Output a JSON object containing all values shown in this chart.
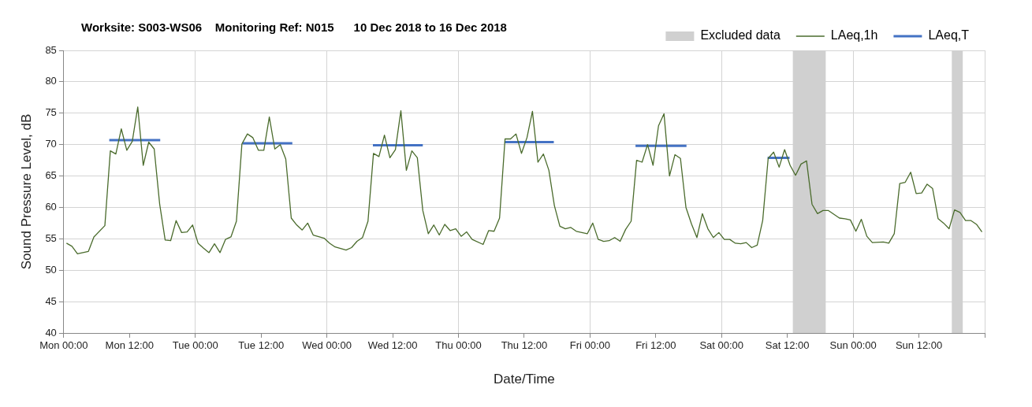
{
  "chart_data": {
    "type": "line",
    "title": "Worksite: S003-WS06    Monitoring Ref: N015      10 Dec 2018 to 16 Dec 2018",
    "xlabel": "Date/Time",
    "ylabel": "Sound Pressure Level, dB",
    "xlim": [
      "2018-12-10T00:00",
      "2018-12-17T00:00"
    ],
    "ylim": [
      40,
      85
    ],
    "yticks": [
      40,
      45,
      50,
      55,
      60,
      65,
      70,
      75,
      80,
      85
    ],
    "xticks": [
      {
        "value": "2018-12-10T00:00",
        "label": "Mon 00:00"
      },
      {
        "value": "2018-12-10T12:00",
        "label": "Mon 12:00"
      },
      {
        "value": "2018-12-11T00:00",
        "label": "Tue 00:00"
      },
      {
        "value": "2018-12-11T12:00",
        "label": "Tue 12:00"
      },
      {
        "value": "2018-12-12T00:00",
        "label": "Wed 00:00"
      },
      {
        "value": "2018-12-12T12:00",
        "label": "Wed 12:00"
      },
      {
        "value": "2018-12-13T00:00",
        "label": "Thu 00:00"
      },
      {
        "value": "2018-12-13T12:00",
        "label": "Thu 12:00"
      },
      {
        "value": "2018-12-14T00:00",
        "label": "Fri 00:00"
      },
      {
        "value": "2018-12-14T12:00",
        "label": "Fri 12:00"
      },
      {
        "value": "2018-12-15T00:00",
        "label": "Sat 00:00"
      },
      {
        "value": "2018-12-15T12:00",
        "label": "Sat 12:00"
      },
      {
        "value": "2018-12-16T00:00",
        "label": "Sun 00:00"
      },
      {
        "value": "2018-12-16T12:00",
        "label": "Sun 12:00"
      },
      {
        "value": "2018-12-17T00:00",
        "label": null
      }
    ],
    "grid": true,
    "legend": "top right",
    "marker": "none",
    "bands": [
      {
        "axis": "x",
        "from": "2018-12-15T13:00",
        "to": "2018-12-15T19:00",
        "label": "Excluded data",
        "color": "#d0d0d0"
      },
      {
        "axis": "x",
        "from": "2018-12-16T18:00",
        "to": "2018-12-16T20:00",
        "color": "#d0d0d0"
      }
    ],
    "series": [
      {
        "name": "LAeq,1h",
        "color": "#4a6b2c",
        "x": [
          "2018-12-10T00:30",
          "2018-12-10T01:30",
          "2018-12-10T02:30",
          "2018-12-10T04:30",
          "2018-12-10T05:30",
          "2018-12-10T07:30",
          "2018-12-10T08:30",
          "2018-12-10T09:30",
          "2018-12-10T10:30",
          "2018-12-10T11:30",
          "2018-12-10T12:30",
          "2018-12-10T13:30",
          "2018-12-10T14:30",
          "2018-12-10T15:30",
          "2018-12-10T16:30",
          "2018-12-10T17:30",
          "2018-12-10T18:30",
          "2018-12-10T19:30",
          "2018-12-10T20:30",
          "2018-12-10T21:30",
          "2018-12-10T22:30",
          "2018-12-10T23:30",
          "2018-12-11T00:30",
          "2018-12-11T01:30",
          "2018-12-11T02:30",
          "2018-12-11T03:30",
          "2018-12-11T04:30",
          "2018-12-11T05:30",
          "2018-12-11T06:30",
          "2018-12-11T07:30",
          "2018-12-11T08:30",
          "2018-12-11T09:30",
          "2018-12-11T10:30",
          "2018-12-11T11:30",
          "2018-12-11T12:30",
          "2018-12-11T13:30",
          "2018-12-11T14:30",
          "2018-12-11T15:30",
          "2018-12-11T16:30",
          "2018-12-11T17:30",
          "2018-12-11T18:30",
          "2018-12-11T19:30",
          "2018-12-11T20:30",
          "2018-12-11T21:30",
          "2018-12-11T23:30",
          "2018-12-12T00:30",
          "2018-12-12T01:30",
          "2018-12-12T03:30",
          "2018-12-12T04:30",
          "2018-12-12T05:30",
          "2018-12-12T06:30",
          "2018-12-12T07:30",
          "2018-12-12T08:30",
          "2018-12-12T09:30",
          "2018-12-12T10:30",
          "2018-12-12T11:30",
          "2018-12-12T12:30",
          "2018-12-12T13:30",
          "2018-12-12T14:30",
          "2018-12-12T15:30",
          "2018-12-12T16:30",
          "2018-12-12T17:30",
          "2018-12-12T18:30",
          "2018-12-12T19:30",
          "2018-12-12T20:30",
          "2018-12-12T21:30",
          "2018-12-12T22:30",
          "2018-12-12T23:30",
          "2018-12-13T00:30",
          "2018-12-13T01:30",
          "2018-12-13T02:30",
          "2018-12-13T04:30",
          "2018-12-13T05:30",
          "2018-12-13T06:30",
          "2018-12-13T07:30",
          "2018-12-13T08:30",
          "2018-12-13T09:30",
          "2018-12-13T10:30",
          "2018-12-13T11:30",
          "2018-12-13T12:30",
          "2018-12-13T13:30",
          "2018-12-13T14:30",
          "2018-12-13T15:30",
          "2018-12-13T16:30",
          "2018-12-13T17:30",
          "2018-12-13T18:30",
          "2018-12-13T19:30",
          "2018-12-13T20:30",
          "2018-12-13T21:30",
          "2018-12-13T22:30",
          "2018-12-13T23:30",
          "2018-12-14T00:30",
          "2018-12-14T01:30",
          "2018-12-14T02:30",
          "2018-12-14T03:30",
          "2018-12-14T04:30",
          "2018-12-14T05:30",
          "2018-12-14T06:30",
          "2018-12-14T07:30",
          "2018-12-14T08:30",
          "2018-12-14T09:30",
          "2018-12-14T10:30",
          "2018-12-14T11:30",
          "2018-12-14T12:30",
          "2018-12-14T13:30",
          "2018-12-14T14:30",
          "2018-12-14T15:30",
          "2018-12-14T16:30",
          "2018-12-14T17:30",
          "2018-12-14T18:30",
          "2018-12-14T19:30",
          "2018-12-14T20:30",
          "2018-12-14T21:30",
          "2018-12-14T22:30",
          "2018-12-14T23:30",
          "2018-12-15T00:30",
          "2018-12-15T01:30",
          "2018-12-15T02:30",
          "2018-12-15T03:30",
          "2018-12-15T04:30",
          "2018-12-15T05:30",
          "2018-12-15T06:30",
          "2018-12-15T07:30",
          "2018-12-15T08:30",
          "2018-12-15T09:30",
          "2018-12-15T10:30",
          "2018-12-15T11:30",
          "2018-12-15T12:30",
          "2018-12-15T13:30",
          "2018-12-15T14:30",
          "2018-12-15T15:30",
          "2018-12-15T16:30",
          "2018-12-15T17:30",
          "2018-12-15T18:30",
          "2018-12-15T19:30",
          "2018-12-15T20:30",
          "2018-12-15T21:30",
          "2018-12-15T22:30",
          "2018-12-15T23:30",
          "2018-12-16T00:30",
          "2018-12-16T01:30",
          "2018-12-16T02:30",
          "2018-12-16T03:30",
          "2018-12-16T05:30",
          "2018-12-16T06:30",
          "2018-12-16T07:30",
          "2018-12-16T08:30",
          "2018-12-16T09:30",
          "2018-12-16T10:30",
          "2018-12-16T11:30",
          "2018-12-16T12:30",
          "2018-12-16T13:30",
          "2018-12-16T14:30",
          "2018-12-16T15:30",
          "2018-12-16T16:30",
          "2018-12-16T17:30",
          "2018-12-16T18:30",
          "2018-12-16T19:30",
          "2018-12-16T20:30",
          "2018-12-16T21:30",
          "2018-12-16T22:30",
          "2018-12-16T23:30"
        ],
        "values": [
          54.3,
          53.8,
          52.6,
          53.0,
          55.3,
          57.1,
          69.0,
          68.5,
          72.5,
          69.1,
          70.5,
          76.0,
          66.7,
          70.4,
          69.3,
          60.5,
          54.8,
          54.7,
          57.9,
          56.0,
          56.1,
          57.2,
          54.3,
          53.5,
          52.8,
          54.2,
          52.8,
          54.9,
          55.3,
          57.8,
          70.1,
          71.7,
          71.1,
          69.1,
          69.1,
          74.4,
          69.3,
          70.0,
          67.7,
          58.3,
          57.2,
          56.4,
          57.5,
          55.6,
          55.1,
          54.3,
          53.7,
          53.2,
          53.6,
          54.6,
          55.2,
          57.8,
          68.6,
          68.1,
          71.5,
          67.9,
          69.2,
          75.4,
          65.9,
          69.0,
          67.9,
          59.5,
          55.8,
          57.2,
          55.6,
          57.3,
          56.3,
          56.6,
          55.4,
          56.1,
          54.9,
          54.1,
          56.3,
          56.2,
          58.3,
          70.9,
          70.9,
          71.7,
          68.6,
          71.1,
          75.3,
          67.2,
          68.5,
          65.9,
          60.3,
          57.0,
          56.6,
          56.8,
          56.2,
          56.0,
          55.8,
          57.5,
          54.9,
          54.6,
          54.7,
          55.2,
          54.6,
          56.5,
          57.8,
          67.5,
          67.2,
          70.0,
          66.7,
          73.0,
          74.9,
          65.0,
          68.4,
          67.8,
          60.0,
          57.4,
          55.2,
          59.0,
          56.6,
          55.2,
          56.0,
          54.9,
          54.9,
          54.3,
          54.2,
          54.4,
          53.6,
          54.0,
          57.9,
          67.8,
          68.8,
          66.4,
          69.2,
          66.7,
          65.1,
          66.9,
          67.4,
          60.5,
          59.0,
          59.5,
          59.5,
          58.9,
          58.3,
          58.2,
          58.0,
          56.2,
          58.1,
          55.4,
          54.4,
          54.5,
          54.3,
          55.8,
          63.8,
          64.0,
          65.6,
          62.2,
          62.3,
          63.7,
          63.0,
          58.2,
          57.5,
          56.6,
          59.6,
          59.2,
          57.9,
          57.9,
          57.3,
          56.1
        ]
      },
      {
        "name": "LAeq,T",
        "color": "#4472c4",
        "x": [
          "2018-12-10T08:18",
          "2018-12-10T17:36",
          "2018-12-11T01:00",
          "2018-12-11T08:36",
          "2018-12-11T17:42",
          "2018-12-12T01:00",
          "2018-12-12T08:24",
          "2018-12-12T17:30",
          "2018-12-13T01:00",
          "2018-12-13T08:24",
          "2018-12-13T17:24",
          "2018-12-14T01:00",
          "2018-12-14T08:18",
          "2018-12-14T17:36",
          "2018-12-15T01:00",
          "2018-12-15T08:24",
          "2018-12-15T12:24"
        ],
        "values": [
          70.7,
          70.7,
          null,
          70.2,
          70.2,
          null,
          69.9,
          69.9,
          null,
          70.4,
          70.4,
          null,
          69.8,
          69.8,
          null,
          67.9,
          67.9
        ]
      }
    ]
  }
}
